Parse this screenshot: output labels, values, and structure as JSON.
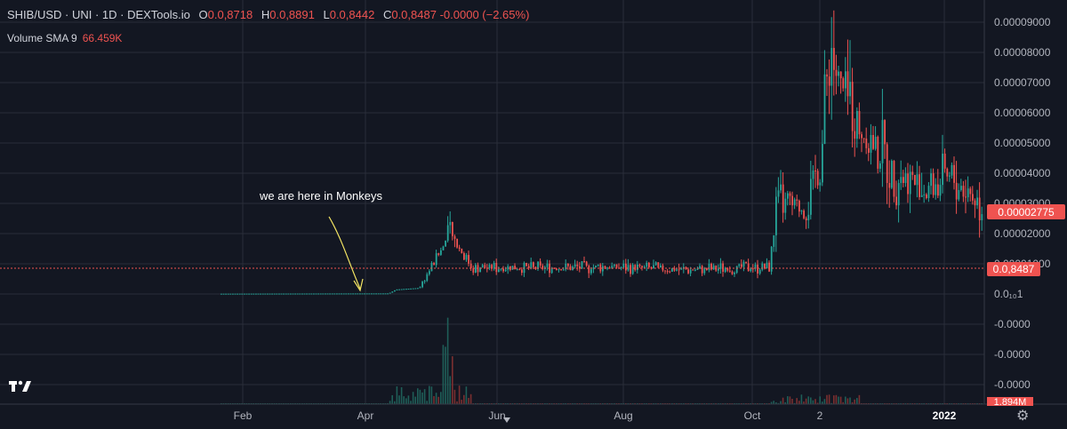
{
  "header": {
    "symbol": "SHIB/USD · UNI · 1D · DEXTools.io",
    "open_label": "O",
    "open": "0.0,8718",
    "high_label": "H",
    "high": "0.0,8891",
    "low_label": "L",
    "low": "0.0,8442",
    "close_label": "C",
    "close": "0.0,8487",
    "change": "-0.0000 (−2.65%)",
    "volume_label": "Volume SMA 9",
    "volume_value": "66.459K"
  },
  "annotation": "we are here in Monkeys",
  "colors": {
    "up": "#26a69a",
    "down": "#ef5350",
    "grid": "#2a2e39",
    "bg": "#131722",
    "text": "#b2b5be",
    "arrow": "#f5e663"
  },
  "chart_data": {
    "type": "candlestick",
    "xlabels": [
      "Feb",
      "Apr",
      "Jun",
      "Aug",
      "Oct",
      "2",
      "2022"
    ],
    "y_tick_labels": [
      "0.00009000",
      "0.00008000",
      "0.00007000",
      "0.00006000",
      "0.00005000",
      "0.00004000",
      "0.00003000",
      "0.00002000",
      "0.00001000",
      "0.0₁₀1",
      "-0.0000",
      "-0.0000",
      "-0.0000"
    ],
    "price_badge": "0.00002775",
    "last_badge": "0.0,8487",
    "volume_badge": "1.894M",
    "ylim": [
      0,
      9e-05
    ],
    "price_path": [
      [
        0,
        1e-07
      ],
      [
        0.22,
        2e-07
      ],
      [
        0.23,
        1.5e-06
      ],
      [
        0.26,
        2e-06
      ],
      [
        0.29,
        1.5e-05
      ],
      [
        0.3,
        2e-05
      ],
      [
        0.31,
        1.6e-05
      ],
      [
        0.33,
        9e-06
      ],
      [
        0.4,
        8.5e-06
      ],
      [
        0.5,
        9e-06
      ],
      [
        0.62,
        8e-06
      ],
      [
        0.7,
        9e-06
      ],
      [
        0.72,
        8.5e-06
      ],
      [
        0.73,
        3e-05
      ],
      [
        0.77,
        2.8e-05
      ],
      [
        0.79,
        5e-05
      ],
      [
        0.8,
        8.5e-05
      ],
      [
        0.81,
        7e-05
      ],
      [
        0.84,
        5.5e-05
      ],
      [
        0.88,
        4.2e-05
      ],
      [
        0.92,
        3.5e-05
      ],
      [
        0.96,
        3.8e-05
      ],
      [
        1.0,
        3e-05
      ]
    ]
  }
}
